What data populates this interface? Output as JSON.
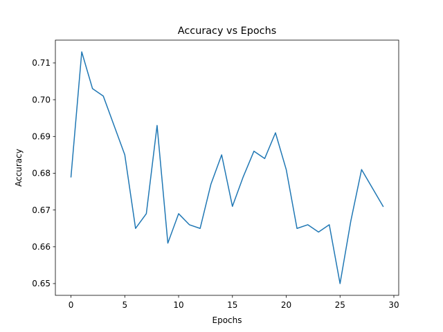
{
  "chart_data": {
    "type": "line",
    "title": "Accuracy vs Epochs",
    "xlabel": "Epochs",
    "ylabel": "Accuracy",
    "xlim": [
      -1.45,
      30.45
    ],
    "ylim": [
      0.6468,
      0.7162
    ],
    "x_ticks": [
      0,
      5,
      10,
      15,
      20,
      25,
      30
    ],
    "y_ticks": [
      0.65,
      0.66,
      0.67,
      0.68,
      0.69,
      0.7,
      0.71
    ],
    "grid": false,
    "series": [
      {
        "color": "#1f77b4",
        "x": [
          0,
          1,
          2,
          3,
          4,
          5,
          6,
          7,
          8,
          9,
          10,
          11,
          12,
          13,
          14,
          15,
          16,
          17,
          18,
          19,
          20,
          21,
          22,
          23,
          24,
          25,
          26,
          27,
          28,
          29
        ],
        "y": [
          0.679,
          0.713,
          0.703,
          0.701,
          0.693,
          0.685,
          0.665,
          0.669,
          0.693,
          0.661,
          0.669,
          0.666,
          0.665,
          0.677,
          0.685,
          0.671,
          0.679,
          0.686,
          0.684,
          0.691,
          0.681,
          0.665,
          0.666,
          0.664,
          0.666,
          0.65,
          0.667,
          0.681,
          0.676,
          0.671
        ]
      }
    ]
  }
}
